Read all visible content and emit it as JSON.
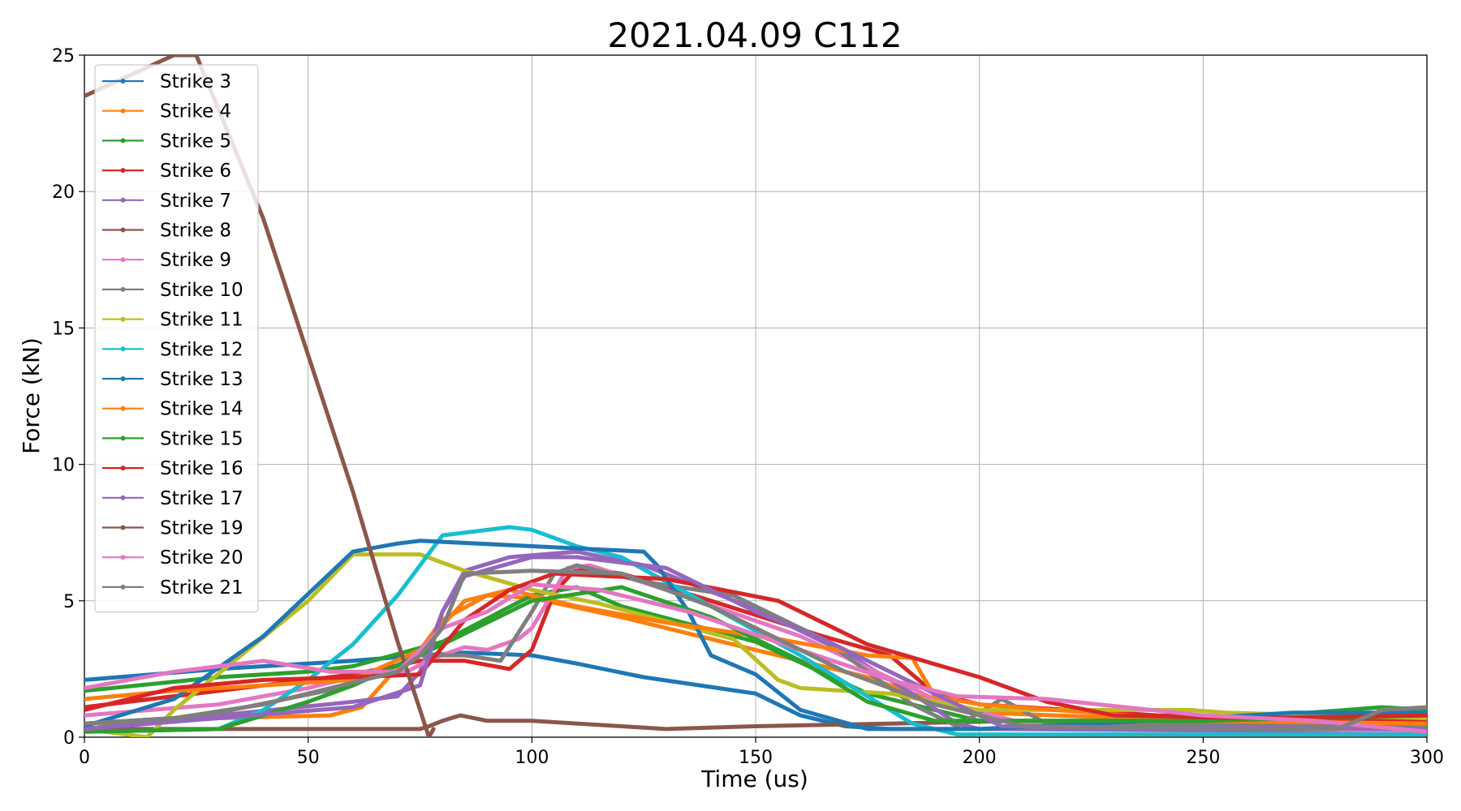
{
  "chart_data": {
    "type": "line",
    "title": "2021.04.09 C112",
    "xlabel": "Time (us)",
    "ylabel": "Force (kN)",
    "xlim": [
      0,
      300
    ],
    "ylim": [
      0,
      25
    ],
    "xticks": [
      0,
      50,
      100,
      150,
      200,
      250,
      300
    ],
    "yticks": [
      0,
      5,
      10,
      15,
      20,
      25
    ],
    "grid": true,
    "legend_position": "upper-left",
    "series": [
      {
        "name": "Strike 3",
        "color": "#1f77b4",
        "points": [
          [
            0,
            2.1
          ],
          [
            30,
            2.5
          ],
          [
            60,
            2.8
          ],
          [
            75,
            3.0
          ],
          [
            85,
            3.1
          ],
          [
            100,
            3.0
          ],
          [
            110,
            2.7
          ],
          [
            125,
            2.2
          ],
          [
            150,
            1.6
          ],
          [
            160,
            0.8
          ],
          [
            170,
            0.4
          ],
          [
            180,
            0.3
          ],
          [
            200,
            0.3
          ],
          [
            300,
            0.3
          ]
        ]
      },
      {
        "name": "Strike 4",
        "color": "#ff7f0e",
        "points": [
          [
            0,
            0.5
          ],
          [
            30,
            0.7
          ],
          [
            55,
            0.8
          ],
          [
            62,
            1.1
          ],
          [
            68,
            2.2
          ],
          [
            75,
            3.2
          ],
          [
            80,
            4.3
          ],
          [
            90,
            5.2
          ],
          [
            100,
            5.1
          ],
          [
            120,
            4.4
          ],
          [
            150,
            3.2
          ],
          [
            175,
            2.2
          ],
          [
            190,
            1.3
          ],
          [
            200,
            0.9
          ],
          [
            250,
            0.6
          ],
          [
            300,
            0.5
          ]
        ]
      },
      {
        "name": "Strike 5",
        "color": "#2ca02c",
        "points": [
          [
            0,
            1.7
          ],
          [
            30,
            2.2
          ],
          [
            50,
            2.4
          ],
          [
            60,
            2.6
          ],
          [
            80,
            3.5
          ],
          [
            100,
            5.2
          ],
          [
            110,
            5.5
          ],
          [
            120,
            4.8
          ],
          [
            150,
            3.5
          ],
          [
            175,
            1.6
          ],
          [
            200,
            0.6
          ],
          [
            250,
            0.6
          ],
          [
            290,
            1.1
          ],
          [
            300,
            1.0
          ]
        ]
      },
      {
        "name": "Strike 6",
        "color": "#d62728",
        "points": [
          [
            0,
            1.1
          ],
          [
            20,
            1.5
          ],
          [
            40,
            1.9
          ],
          [
            60,
            2.3
          ],
          [
            75,
            2.8
          ],
          [
            85,
            2.8
          ],
          [
            95,
            2.5
          ],
          [
            100,
            3.2
          ],
          [
            105,
            5.3
          ],
          [
            110,
            6.2
          ],
          [
            120,
            6.0
          ],
          [
            140,
            5.0
          ],
          [
            165,
            3.7
          ],
          [
            180,
            3.0
          ],
          [
            190,
            1.6
          ],
          [
            200,
            1.2
          ],
          [
            240,
            0.8
          ],
          [
            300,
            0.6
          ]
        ]
      },
      {
        "name": "Strike 7",
        "color": "#9467bd",
        "points": [
          [
            0,
            0.5
          ],
          [
            30,
            0.8
          ],
          [
            60,
            1.3
          ],
          [
            70,
            1.5
          ],
          [
            75,
            2.4
          ],
          [
            80,
            4.6
          ],
          [
            85,
            6.1
          ],
          [
            95,
            6.6
          ],
          [
            110,
            6.8
          ],
          [
            125,
            6.3
          ],
          [
            150,
            4.7
          ],
          [
            170,
            3.1
          ],
          [
            185,
            1.6
          ],
          [
            195,
            0.5
          ],
          [
            200,
            0.3
          ],
          [
            300,
            0.2
          ]
        ]
      },
      {
        "name": "Strike 8",
        "color": "#8c564b",
        "points": [
          [
            0,
            0.3
          ],
          [
            75,
            0.3
          ],
          [
            77,
            0.4
          ],
          [
            80,
            0.6
          ],
          [
            84,
            0.8
          ],
          [
            90,
            0.6
          ],
          [
            100,
            0.6
          ],
          [
            120,
            0.4
          ],
          [
            130,
            0.3
          ],
          [
            150,
            0.4
          ],
          [
            180,
            0.5
          ],
          [
            210,
            0.6
          ],
          [
            250,
            0.5
          ],
          [
            300,
            0.4
          ]
        ]
      },
      {
        "name": "Strike 9",
        "color": "#e377c2",
        "points": [
          [
            0,
            0.8
          ],
          [
            30,
            1.2
          ],
          [
            50,
            1.8
          ],
          [
            60,
            2.2
          ],
          [
            72,
            2.4
          ],
          [
            78,
            2.9
          ],
          [
            85,
            3.3
          ],
          [
            90,
            3.2
          ],
          [
            97,
            3.6
          ],
          [
            100,
            4.0
          ],
          [
            108,
            6.2
          ],
          [
            113,
            6.3
          ],
          [
            130,
            5.4
          ],
          [
            160,
            3.7
          ],
          [
            190,
            1.4
          ],
          [
            210,
            0.5
          ],
          [
            300,
            0.2
          ]
        ]
      },
      {
        "name": "Strike 10",
        "color": "#7f7f7f",
        "points": [
          [
            0,
            0.3
          ],
          [
            30,
            0.9
          ],
          [
            60,
            1.9
          ],
          [
            75,
            3.0
          ],
          [
            85,
            3.0
          ],
          [
            93,
            2.8
          ],
          [
            100,
            4.6
          ],
          [
            105,
            6.0
          ],
          [
            110,
            6.3
          ],
          [
            125,
            5.7
          ],
          [
            145,
            5.2
          ],
          [
            165,
            3.6
          ],
          [
            185,
            1.2
          ],
          [
            195,
            0.4
          ],
          [
            205,
            1.4
          ],
          [
            215,
            0.5
          ],
          [
            300,
            0.4
          ]
        ]
      },
      {
        "name": "Strike 11",
        "color": "#bcbd22",
        "points": [
          [
            0,
            0.3
          ],
          [
            14,
            0.0
          ],
          [
            20,
            1.0
          ],
          [
            35,
            3.0
          ],
          [
            50,
            5.0
          ],
          [
            60,
            6.7
          ],
          [
            75,
            6.7
          ],
          [
            85,
            6.1
          ],
          [
            100,
            5.4
          ],
          [
            115,
            4.9
          ],
          [
            145,
            3.6
          ],
          [
            155,
            2.1
          ],
          [
            160,
            1.8
          ],
          [
            180,
            1.6
          ],
          [
            200,
            1.0
          ],
          [
            247,
            1.0
          ],
          [
            255,
            0.9
          ],
          [
            300,
            0.7
          ]
        ]
      },
      {
        "name": "Strike 12",
        "color": "#17becf",
        "points": [
          [
            0,
            0.2
          ],
          [
            30,
            0.3
          ],
          [
            40,
            1.0
          ],
          [
            50,
            2.1
          ],
          [
            60,
            3.4
          ],
          [
            70,
            5.2
          ],
          [
            80,
            7.4
          ],
          [
            95,
            7.7
          ],
          [
            100,
            7.6
          ],
          [
            110,
            7.0
          ],
          [
            120,
            6.6
          ],
          [
            140,
            4.8
          ],
          [
            160,
            3.0
          ],
          [
            175,
            1.5
          ],
          [
            185,
            0.5
          ],
          [
            195,
            0.1
          ],
          [
            300,
            0.1
          ]
        ]
      },
      {
        "name": "Strike 13",
        "color": "#1f77b4",
        "points": [
          [
            0,
            0.4
          ],
          [
            20,
            1.4
          ],
          [
            40,
            3.7
          ],
          [
            60,
            6.8
          ],
          [
            70,
            7.1
          ],
          [
            75,
            7.2
          ],
          [
            100,
            7.0
          ],
          [
            125,
            6.8
          ],
          [
            128,
            6.3
          ],
          [
            135,
            4.6
          ],
          [
            140,
            3.0
          ],
          [
            150,
            2.3
          ],
          [
            160,
            1.0
          ],
          [
            175,
            0.3
          ],
          [
            200,
            0.3
          ],
          [
            250,
            0.7
          ],
          [
            270,
            0.9
          ],
          [
            300,
            0.9
          ]
        ]
      },
      {
        "name": "Strike 14",
        "color": "#ff7f0e",
        "points": [
          [
            0,
            1.4
          ],
          [
            20,
            1.7
          ],
          [
            40,
            1.9
          ],
          [
            60,
            2.1
          ],
          [
            75,
            3.2
          ],
          [
            85,
            5.0
          ],
          [
            95,
            5.4
          ],
          [
            110,
            4.8
          ],
          [
            130,
            4.2
          ],
          [
            155,
            3.6
          ],
          [
            175,
            3.0
          ],
          [
            185,
            2.9
          ],
          [
            190,
            1.5
          ],
          [
            200,
            1.2
          ],
          [
            250,
            0.6
          ],
          [
            300,
            0.5
          ]
        ]
      },
      {
        "name": "Strike 15",
        "color": "#2ca02c",
        "points": [
          [
            0,
            0.2
          ],
          [
            30,
            0.3
          ],
          [
            50,
            1.3
          ],
          [
            60,
            1.9
          ],
          [
            80,
            3.4
          ],
          [
            100,
            5.0
          ],
          [
            120,
            5.5
          ],
          [
            140,
            4.4
          ],
          [
            160,
            2.8
          ],
          [
            175,
            1.3
          ],
          [
            190,
            0.6
          ],
          [
            250,
            0.6
          ],
          [
            300,
            0.8
          ]
        ]
      },
      {
        "name": "Strike 16",
        "color": "#d62728",
        "points": [
          [
            0,
            1.0
          ],
          [
            20,
            1.8
          ],
          [
            40,
            2.1
          ],
          [
            60,
            2.2
          ],
          [
            75,
            2.3
          ],
          [
            85,
            4.3
          ],
          [
            95,
            5.4
          ],
          [
            105,
            6.0
          ],
          [
            130,
            5.8
          ],
          [
            155,
            5.0
          ],
          [
            175,
            3.4
          ],
          [
            200,
            2.2
          ],
          [
            215,
            1.3
          ],
          [
            230,
            0.8
          ],
          [
            260,
            0.7
          ],
          [
            300,
            0.8
          ]
        ]
      },
      {
        "name": "Strike 17",
        "color": "#9467bd",
        "points": [
          [
            0,
            0.3
          ],
          [
            30,
            0.7
          ],
          [
            60,
            1.1
          ],
          [
            75,
            1.9
          ],
          [
            80,
            4.6
          ],
          [
            85,
            5.9
          ],
          [
            100,
            6.6
          ],
          [
            110,
            6.6
          ],
          [
            130,
            6.2
          ],
          [
            150,
            4.6
          ],
          [
            165,
            3.6
          ],
          [
            180,
            2.4
          ],
          [
            190,
            1.6
          ],
          [
            205,
            0.4
          ],
          [
            300,
            0.3
          ]
        ]
      },
      {
        "name": "Strike 19",
        "color": "#8c564b",
        "points": [
          [
            0,
            23.5
          ],
          [
            20,
            25.0
          ],
          [
            25,
            25.0
          ],
          [
            30,
            23.0
          ],
          [
            40,
            19.0
          ],
          [
            50,
            14.0
          ],
          [
            60,
            9.0
          ],
          [
            70,
            3.5
          ],
          [
            77,
            0.0
          ],
          [
            78,
            0.3
          ]
        ]
      },
      {
        "name": "Strike 20",
        "color": "#e377c2",
        "points": [
          [
            0,
            1.8
          ],
          [
            20,
            2.4
          ],
          [
            40,
            2.8
          ],
          [
            55,
            2.4
          ],
          [
            70,
            2.4
          ],
          [
            80,
            4.0
          ],
          [
            90,
            4.6
          ],
          [
            100,
            5.6
          ],
          [
            115,
            5.4
          ],
          [
            135,
            4.6
          ],
          [
            160,
            3.2
          ],
          [
            180,
            2.1
          ],
          [
            195,
            1.5
          ],
          [
            215,
            1.4
          ],
          [
            250,
            0.8
          ],
          [
            275,
            0.6
          ],
          [
            300,
            0.2
          ]
        ]
      },
      {
        "name": "Strike 21",
        "color": "#7f7f7f",
        "points": [
          [
            0,
            0.5
          ],
          [
            20,
            0.7
          ],
          [
            40,
            1.2
          ],
          [
            60,
            2.0
          ],
          [
            70,
            2.4
          ],
          [
            75,
            3.0
          ],
          [
            80,
            4.0
          ],
          [
            85,
            6.0
          ],
          [
            100,
            6.1
          ],
          [
            120,
            6.0
          ],
          [
            140,
            4.8
          ],
          [
            170,
            2.4
          ],
          [
            190,
            1.2
          ],
          [
            210,
            0.4
          ],
          [
            260,
            0.3
          ],
          [
            280,
            0.3
          ],
          [
            290,
            1.0
          ],
          [
            300,
            1.1
          ]
        ]
      }
    ]
  }
}
